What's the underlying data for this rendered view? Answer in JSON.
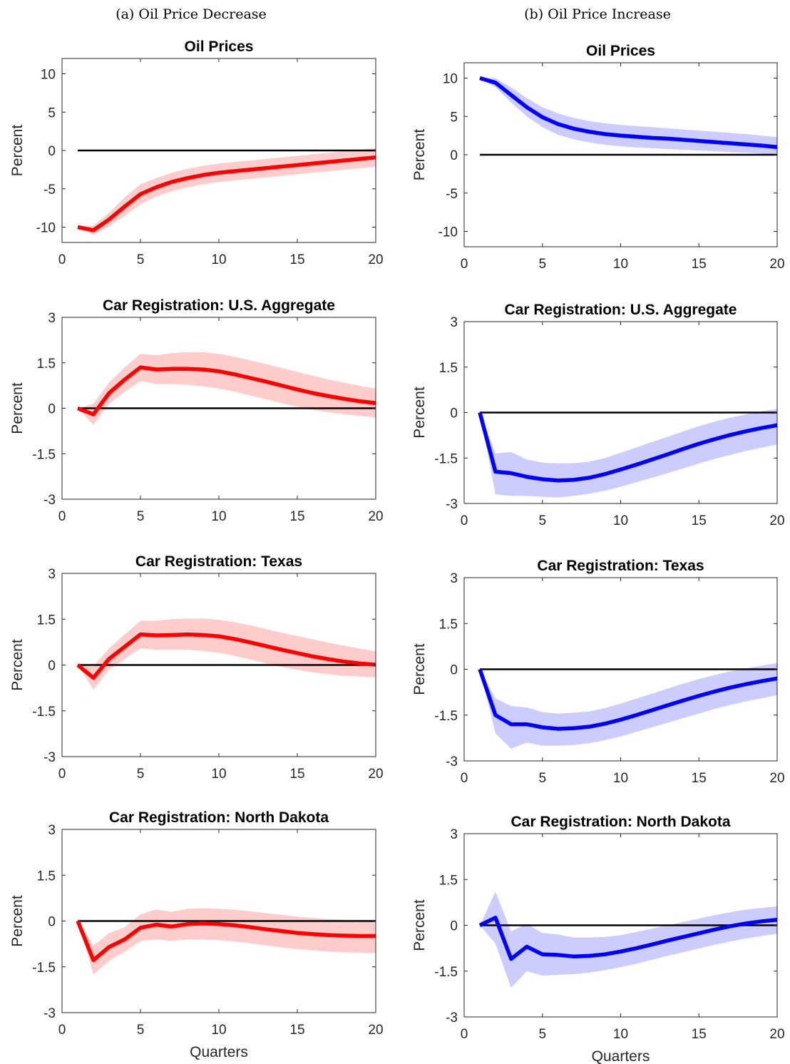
{
  "columns": [
    {
      "title": "(a) Oil Price Decrease"
    },
    {
      "title": "(b) Oil Price Increase"
    }
  ],
  "chart_data": [
    {
      "type": "line",
      "column": 0,
      "row": 0,
      "title": "Oil Prices",
      "ylabel": "Percent",
      "xlabel": "",
      "xlim": [
        0,
        20
      ],
      "ylim": [
        -12,
        12
      ],
      "xticks": [
        0,
        5,
        10,
        15,
        20
      ],
      "yticks": [
        -10,
        -5,
        0,
        5,
        10
      ],
      "grid": false,
      "zero_line": true,
      "color": "#ff0000",
      "band_color": "#ffcccc",
      "x": [
        1,
        2,
        3,
        4,
        5,
        6,
        7,
        8,
        9,
        10,
        11,
        12,
        13,
        14,
        15,
        16,
        17,
        18,
        19,
        20
      ],
      "series": [
        {
          "values": [
            -10,
            -10.4,
            -9.0,
            -7.3,
            -5.7,
            -4.8,
            -4.1,
            -3.6,
            -3.2,
            -2.9,
            -2.7,
            -2.5,
            -2.3,
            -2.1,
            -1.9,
            -1.7,
            -1.5,
            -1.3,
            -1.1,
            -0.9
          ],
          "lower": [
            -10,
            -11.0,
            -9.9,
            -8.5,
            -7.0,
            -6.0,
            -5.3,
            -4.8,
            -4.4,
            -4.1,
            -3.9,
            -3.7,
            -3.5,
            -3.3,
            -3.1,
            -2.9,
            -2.7,
            -2.5,
            -2.3,
            -2.1
          ],
          "upper": [
            -10,
            -9.8,
            -8.1,
            -6.1,
            -4.4,
            -3.6,
            -2.9,
            -2.4,
            -2.0,
            -1.7,
            -1.5,
            -1.3,
            -1.1,
            -0.9,
            -0.7,
            -0.5,
            -0.3,
            -0.1,
            0.1,
            0.3
          ]
        }
      ]
    },
    {
      "type": "line",
      "column": 0,
      "row": 1,
      "title": "Car Registration: U.S. Aggregate",
      "ylabel": "Percent",
      "xlabel": "",
      "xlim": [
        0,
        20
      ],
      "ylim": [
        -3,
        3
      ],
      "xticks": [
        0,
        5,
        10,
        15,
        20
      ],
      "yticks": [
        -3,
        -1.5,
        0,
        1.5,
        3
      ],
      "grid": false,
      "zero_line": true,
      "color": "#ff0000",
      "band_color": "#ffcccc",
      "x": [
        1,
        2,
        3,
        4,
        5,
        6,
        7,
        8,
        9,
        10,
        11,
        12,
        13,
        14,
        15,
        16,
        17,
        18,
        19,
        20
      ],
      "series": [
        {
          "values": [
            0,
            -0.2,
            0.5,
            0.95,
            1.35,
            1.28,
            1.3,
            1.3,
            1.28,
            1.22,
            1.12,
            1.0,
            0.88,
            0.75,
            0.62,
            0.5,
            0.4,
            0.31,
            0.23,
            0.17
          ],
          "lower": [
            0,
            -0.55,
            0.15,
            0.55,
            0.9,
            0.8,
            0.8,
            0.78,
            0.72,
            0.65,
            0.55,
            0.42,
            0.3,
            0.17,
            0.05,
            -0.05,
            -0.13,
            -0.2,
            -0.25,
            -0.3
          ],
          "upper": [
            0,
            0.15,
            0.85,
            1.35,
            1.8,
            1.75,
            1.82,
            1.85,
            1.85,
            1.8,
            1.7,
            1.58,
            1.46,
            1.33,
            1.2,
            1.07,
            0.95,
            0.84,
            0.74,
            0.65
          ]
        }
      ]
    },
    {
      "type": "line",
      "column": 0,
      "row": 2,
      "title": "Car Registration: Texas",
      "ylabel": "Percent",
      "xlabel": "",
      "xlim": [
        0,
        20
      ],
      "ylim": [
        -3,
        3
      ],
      "xticks": [
        0,
        5,
        10,
        15,
        20
      ],
      "yticks": [
        -3,
        -1.5,
        0,
        1.5,
        3
      ],
      "grid": false,
      "zero_line": true,
      "color": "#ff0000",
      "band_color": "#ffcccc",
      "x": [
        1,
        2,
        3,
        4,
        5,
        6,
        7,
        8,
        9,
        10,
        11,
        12,
        13,
        14,
        15,
        16,
        17,
        18,
        19,
        20
      ],
      "series": [
        {
          "values": [
            0,
            -0.42,
            0.2,
            0.6,
            1.0,
            0.97,
            0.98,
            1.0,
            0.98,
            0.94,
            0.85,
            0.74,
            0.62,
            0.5,
            0.39,
            0.28,
            0.19,
            0.11,
            0.05,
            0.01
          ],
          "lower": [
            0,
            -0.8,
            -0.15,
            0.2,
            0.55,
            0.5,
            0.5,
            0.5,
            0.46,
            0.4,
            0.3,
            0.18,
            0.06,
            -0.06,
            -0.16,
            -0.24,
            -0.3,
            -0.35,
            -0.38,
            -0.4
          ],
          "upper": [
            0,
            -0.05,
            0.55,
            1.0,
            1.45,
            1.45,
            1.5,
            1.52,
            1.52,
            1.48,
            1.4,
            1.3,
            1.18,
            1.06,
            0.95,
            0.84,
            0.73,
            0.63,
            0.54,
            0.45
          ]
        }
      ]
    },
    {
      "type": "line",
      "column": 0,
      "row": 3,
      "title": "Car Registration: North Dakota",
      "ylabel": "Percent",
      "xlabel": "Quarters",
      "xlim": [
        0,
        20
      ],
      "ylim": [
        -3,
        3
      ],
      "xticks": [
        0,
        5,
        10,
        15,
        20
      ],
      "yticks": [
        -3,
        -1.5,
        0,
        1.5,
        3
      ],
      "grid": false,
      "zero_line": true,
      "color": "#ff0000",
      "band_color": "#ffcccc",
      "x": [
        1,
        2,
        3,
        4,
        5,
        6,
        7,
        8,
        9,
        10,
        11,
        12,
        13,
        14,
        15,
        16,
        17,
        18,
        19,
        20
      ],
      "series": [
        {
          "values": [
            0,
            -1.28,
            -0.85,
            -0.6,
            -0.22,
            -0.12,
            -0.18,
            -0.1,
            -0.08,
            -0.1,
            -0.14,
            -0.2,
            -0.27,
            -0.33,
            -0.39,
            -0.43,
            -0.46,
            -0.48,
            -0.49,
            -0.49
          ],
          "lower": [
            0,
            -1.75,
            -1.3,
            -1.0,
            -0.65,
            -0.6,
            -0.65,
            -0.6,
            -0.6,
            -0.62,
            -0.67,
            -0.73,
            -0.8,
            -0.86,
            -0.92,
            -0.96,
            -1.0,
            -1.02,
            -1.04,
            -1.05
          ],
          "upper": [
            0,
            -0.8,
            -0.4,
            -0.2,
            0.22,
            0.38,
            0.3,
            0.4,
            0.42,
            0.4,
            0.37,
            0.32,
            0.26,
            0.2,
            0.15,
            0.1,
            0.06,
            0.04,
            0.03,
            0.03
          ]
        }
      ]
    },
    {
      "type": "line",
      "column": 1,
      "row": 0,
      "title": "Oil Prices",
      "ylabel": "Percent",
      "xlabel": "",
      "xlim": [
        0,
        20
      ],
      "ylim": [
        -12,
        12
      ],
      "xticks": [
        0,
        5,
        10,
        15,
        20
      ],
      "yticks": [
        -10,
        -5,
        0,
        5,
        10
      ],
      "grid": false,
      "zero_line": true,
      "color": "#0000ff",
      "band_color": "#ccccff",
      "x": [
        1,
        2,
        3,
        4,
        5,
        6,
        7,
        8,
        9,
        10,
        11,
        12,
        13,
        14,
        15,
        16,
        17,
        18,
        19,
        20
      ],
      "series": [
        {
          "values": [
            10,
            9.4,
            7.8,
            6.2,
            4.9,
            4.0,
            3.4,
            3.0,
            2.7,
            2.5,
            2.35,
            2.2,
            2.1,
            1.95,
            1.8,
            1.65,
            1.5,
            1.35,
            1.2,
            1.0
          ],
          "lower": [
            10,
            8.8,
            6.8,
            5.0,
            3.6,
            2.6,
            2.0,
            1.6,
            1.3,
            1.1,
            0.95,
            0.85,
            0.75,
            0.65,
            0.55,
            0.45,
            0.35,
            0.25,
            0.15,
            0.0
          ],
          "upper": [
            10,
            10.0,
            8.8,
            7.4,
            6.2,
            5.4,
            4.8,
            4.4,
            4.1,
            3.9,
            3.75,
            3.6,
            3.45,
            3.3,
            3.15,
            3.0,
            2.85,
            2.7,
            2.5,
            2.3
          ]
        }
      ]
    },
    {
      "type": "line",
      "column": 1,
      "row": 1,
      "title": "Car Registration: U.S. Aggregate",
      "ylabel": "Percent",
      "xlabel": "",
      "xlim": [
        0,
        20
      ],
      "ylim": [
        -3,
        3
      ],
      "xticks": [
        0,
        5,
        10,
        15,
        20
      ],
      "yticks": [
        -3,
        -1.5,
        0,
        1.5,
        3
      ],
      "grid": false,
      "zero_line": true,
      "color": "#0000ff",
      "band_color": "#ccccff",
      "x": [
        1,
        2,
        3,
        4,
        5,
        6,
        7,
        8,
        9,
        10,
        11,
        12,
        13,
        14,
        15,
        16,
        17,
        18,
        19,
        20
      ],
      "series": [
        {
          "values": [
            0,
            -1.95,
            -2.0,
            -2.12,
            -2.2,
            -2.24,
            -2.22,
            -2.15,
            -2.03,
            -1.88,
            -1.72,
            -1.55,
            -1.38,
            -1.2,
            -1.03,
            -0.88,
            -0.74,
            -0.62,
            -0.51,
            -0.42
          ],
          "lower": [
            0,
            -2.7,
            -2.75,
            -2.75,
            -2.78,
            -2.8,
            -2.75,
            -2.68,
            -2.58,
            -2.45,
            -2.3,
            -2.15,
            -2.0,
            -1.84,
            -1.68,
            -1.53,
            -1.4,
            -1.27,
            -1.16,
            -1.05
          ],
          "upper": [
            0,
            -1.35,
            -1.3,
            -1.55,
            -1.65,
            -1.68,
            -1.67,
            -1.62,
            -1.5,
            -1.33,
            -1.15,
            -0.97,
            -0.8,
            -0.62,
            -0.45,
            -0.3,
            -0.17,
            -0.06,
            0.04,
            0.12
          ]
        }
      ]
    },
    {
      "type": "line",
      "column": 1,
      "row": 2,
      "title": "Car Registration: Texas",
      "ylabel": "Percent",
      "xlabel": "",
      "xlim": [
        0,
        20
      ],
      "ylim": [
        -3,
        3
      ],
      "xticks": [
        0,
        5,
        10,
        15,
        20
      ],
      "yticks": [
        -3,
        -1.5,
        0,
        1.5,
        3
      ],
      "grid": false,
      "zero_line": true,
      "color": "#0000ff",
      "band_color": "#ccccff",
      "x": [
        1,
        2,
        3,
        4,
        5,
        6,
        7,
        8,
        9,
        10,
        11,
        12,
        13,
        14,
        15,
        16,
        17,
        18,
        19,
        20
      ],
      "series": [
        {
          "values": [
            0,
            -1.5,
            -1.8,
            -1.8,
            -1.9,
            -1.95,
            -1.93,
            -1.88,
            -1.78,
            -1.65,
            -1.5,
            -1.34,
            -1.18,
            -1.02,
            -0.87,
            -0.73,
            -0.6,
            -0.49,
            -0.39,
            -0.3
          ],
          "lower": [
            0,
            -2.1,
            -2.6,
            -2.4,
            -2.5,
            -2.5,
            -2.48,
            -2.42,
            -2.32,
            -2.2,
            -2.05,
            -1.9,
            -1.75,
            -1.6,
            -1.45,
            -1.3,
            -1.17,
            -1.05,
            -0.95,
            -0.85
          ],
          "upper": [
            0,
            -0.95,
            -1.2,
            -1.25,
            -1.4,
            -1.45,
            -1.42,
            -1.38,
            -1.27,
            -1.12,
            -0.96,
            -0.8,
            -0.63,
            -0.47,
            -0.32,
            -0.19,
            -0.07,
            0.03,
            0.12,
            0.2
          ]
        }
      ]
    },
    {
      "type": "line",
      "column": 1,
      "row": 3,
      "title": "Car Registration: North Dakota",
      "ylabel": "Percent",
      "xlabel": "Quarters",
      "xlim": [
        0,
        20
      ],
      "ylim": [
        -3,
        3
      ],
      "xticks": [
        0,
        5,
        10,
        15,
        20
      ],
      "yticks": [
        -3,
        -1.5,
        0,
        1.5,
        3
      ],
      "grid": false,
      "zero_line": true,
      "color": "#0000ff",
      "band_color": "#ccccff",
      "x": [
        1,
        2,
        3,
        4,
        5,
        6,
        7,
        8,
        9,
        10,
        11,
        12,
        13,
        14,
        15,
        16,
        17,
        18,
        19,
        20
      ],
      "series": [
        {
          "values": [
            0,
            0.25,
            -1.1,
            -0.7,
            -0.95,
            -0.97,
            -1.02,
            -1.0,
            -0.95,
            -0.86,
            -0.75,
            -0.63,
            -0.5,
            -0.38,
            -0.26,
            -0.14,
            -0.03,
            0.06,
            0.13,
            0.18
          ],
          "lower": [
            0,
            -0.6,
            -2.05,
            -1.5,
            -1.65,
            -1.62,
            -1.6,
            -1.55,
            -1.47,
            -1.37,
            -1.26,
            -1.13,
            -1.0,
            -0.88,
            -0.76,
            -0.64,
            -0.53,
            -0.43,
            -0.35,
            -0.28
          ],
          "upper": [
            0,
            1.1,
            -0.2,
            0.05,
            -0.25,
            -0.3,
            -0.4,
            -0.4,
            -0.38,
            -0.32,
            -0.22,
            -0.11,
            0.0,
            0.11,
            0.22,
            0.33,
            0.43,
            0.51,
            0.57,
            0.62
          ]
        }
      ]
    }
  ]
}
